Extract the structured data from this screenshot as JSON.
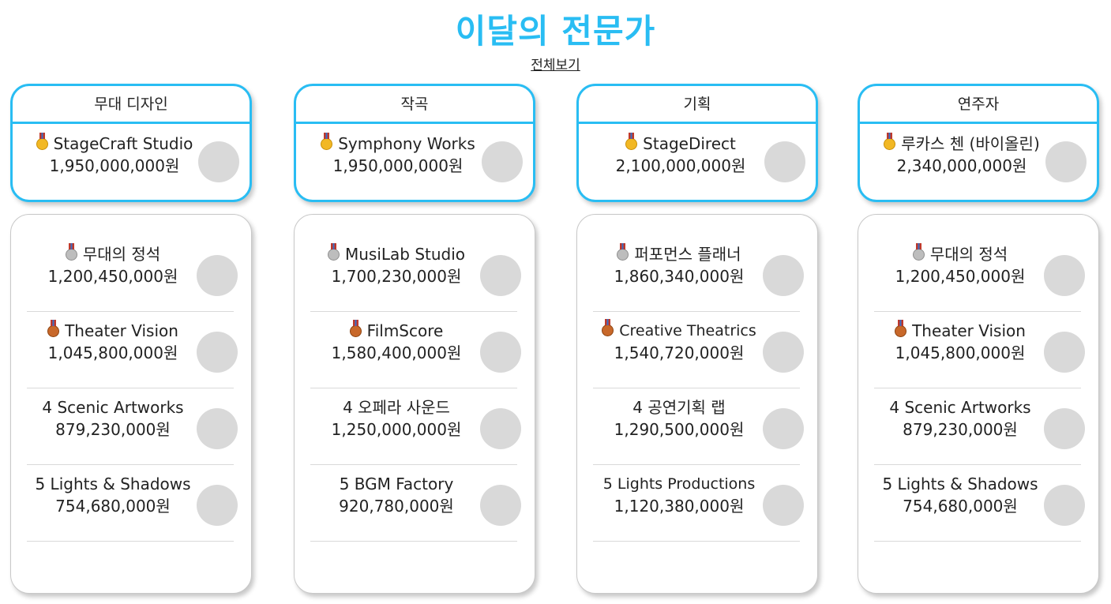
{
  "header": {
    "title": "이달의 전문가",
    "view_all": "전체보기"
  },
  "columns": [
    {
      "category": "무대 디자인",
      "top": {
        "rank_icon": "gold-medal-icon",
        "name": "StageCraft Studio",
        "amount": "1,950,000,000원"
      },
      "list": [
        {
          "rank_icon": "silver-medal-icon",
          "name": "무대의 정석",
          "amount": "1,200,450,000원"
        },
        {
          "rank_icon": "bronze-medal-icon",
          "name": "Theater Vision",
          "amount": "1,045,800,000원"
        },
        {
          "name": "4 Scenic Artworks",
          "amount": "879,230,000원"
        },
        {
          "name": "5 Lights & Shadows",
          "amount": "754,680,000원"
        }
      ]
    },
    {
      "category": "작곡",
      "top": {
        "rank_icon": "gold-medal-icon",
        "name": "Symphony Works",
        "amount": "1,950,000,000원"
      },
      "list": [
        {
          "rank_icon": "silver-medal-icon",
          "name": "MusiLab Studio",
          "amount": "1,700,230,000원"
        },
        {
          "rank_icon": "bronze-medal-icon",
          "name": "FilmScore",
          "amount": "1,580,400,000원"
        },
        {
          "name": "4 오페라 사운드",
          "amount": "1,250,000,000원"
        },
        {
          "name": "5 BGM Factory",
          "amount": "920,780,000원"
        }
      ]
    },
    {
      "category": "기획",
      "top": {
        "rank_icon": "gold-medal-icon",
        "name": "StageDirect",
        "amount": "2,100,000,000원"
      },
      "list": [
        {
          "rank_icon": "silver-medal-icon",
          "name": "퍼포먼스 플래너",
          "amount": "1,860,340,000원"
        },
        {
          "rank_icon": "bronze-medal-icon",
          "name": "Creative Theatrics",
          "amount": "1,540,720,000원"
        },
        {
          "name": "4 공연기획 랩",
          "amount": "1,290,500,000원"
        },
        {
          "name": "5 Lights Productions",
          "amount": "1,120,380,000원"
        }
      ]
    },
    {
      "category": "연주자",
      "top": {
        "rank_icon": "gold-medal-icon",
        "name": "루카스 첸 (바이올린)",
        "amount": "2,340,000,000원"
      },
      "list": [
        {
          "rank_icon": "silver-medal-icon",
          "name": "무대의 정석",
          "amount": "1,200,450,000원"
        },
        {
          "rank_icon": "bronze-medal-icon",
          "name": "Theater Vision",
          "amount": "1,045,800,000원"
        },
        {
          "name": "4 Scenic Artworks",
          "amount": "879,230,000원"
        },
        {
          "name": "5 Lights & Shadows",
          "amount": "754,680,000원"
        }
      ]
    }
  ]
}
